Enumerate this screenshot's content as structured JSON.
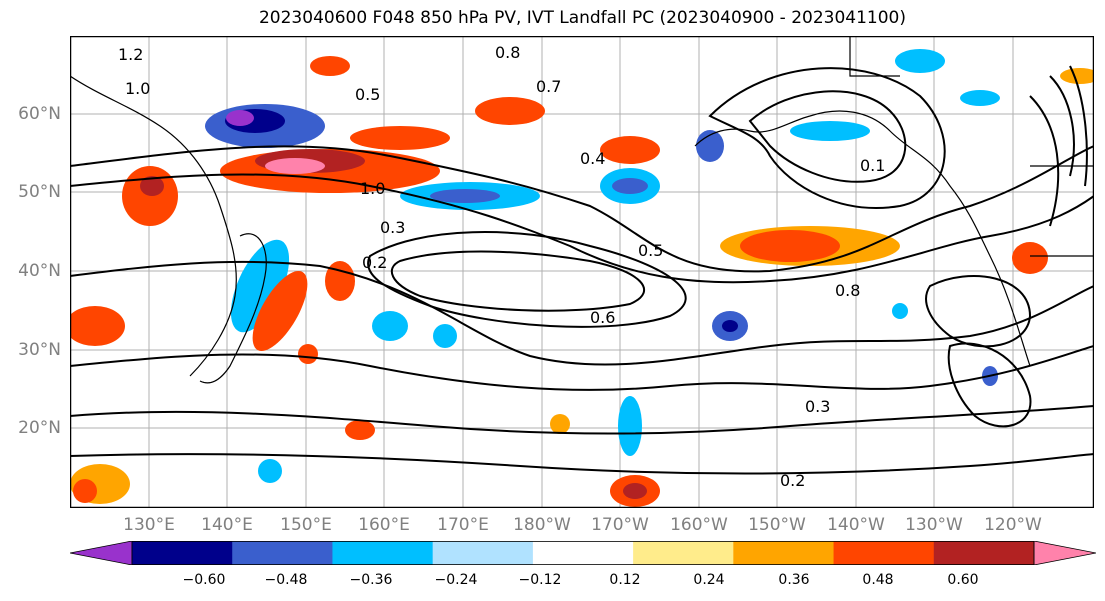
{
  "title": "2023040600 F048 850 hPa PV, IVT Landfall PC (2023040900 - 2023041100)",
  "lat_labels": [
    "60°N",
    "50°N",
    "40°N",
    "30°N",
    "20°N"
  ],
  "lon_labels": [
    "130°E",
    "140°E",
    "150°E",
    "160°E",
    "170°E",
    "180°W",
    "170°W",
    "160°W",
    "150°W",
    "140°W",
    "130°W",
    "120°W"
  ],
  "contour_labels": [
    "1.2",
    "1.0",
    "0.8",
    "0.7",
    "0.5",
    "0.4",
    "0.3",
    "0.2",
    "0.6",
    "0.1",
    "1.0",
    "0.8",
    "0.5",
    "0.3",
    "0.2"
  ],
  "colorbar": {
    "ticks": [
      "−0.60",
      "−0.48",
      "−0.36",
      "−0.24",
      "−0.12",
      "0.12",
      "0.24",
      "0.36",
      "0.48",
      "0.60"
    ],
    "colors": [
      "#9932cc",
      "#00008b",
      "#3a5fcd",
      "#00bfff",
      "#b0e2ff",
      "#ffffff",
      "#ffec8b",
      "#ffa500",
      "#ff4500",
      "#b22222",
      "#ff82ab"
    ]
  }
}
